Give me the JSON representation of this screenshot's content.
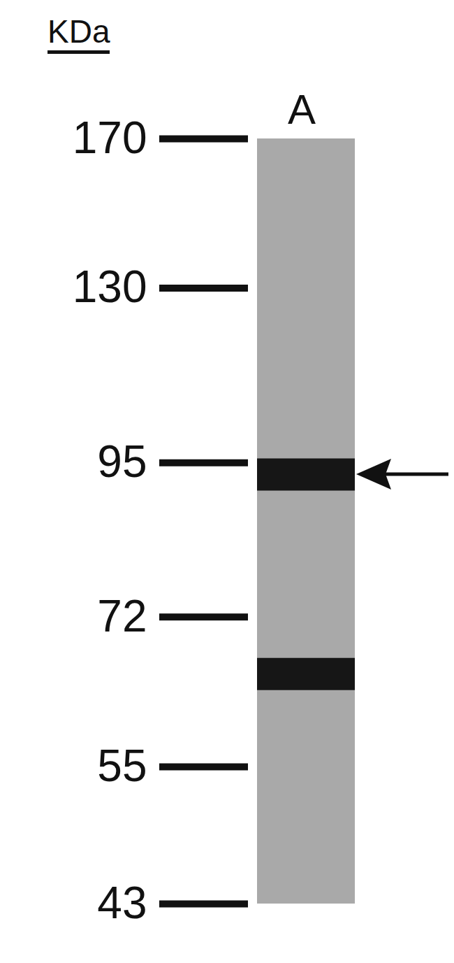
{
  "chart_data": {
    "type": "blot",
    "title": "KDa",
    "categories": [
      "A"
    ],
    "color": "#a9a9a9",
    "bands": [
      {
        "lane": "A",
        "value": 93,
        "arrow": true,
        "color": "#161616"
      },
      {
        "lane": "A",
        "value": 65,
        "arrow": false,
        "color": "#161616"
      }
    ],
    "ylim": [
      43,
      170
    ],
    "yticks": [
      170,
      130,
      95,
      72,
      55,
      43
    ],
    "log": "y"
  }
}
